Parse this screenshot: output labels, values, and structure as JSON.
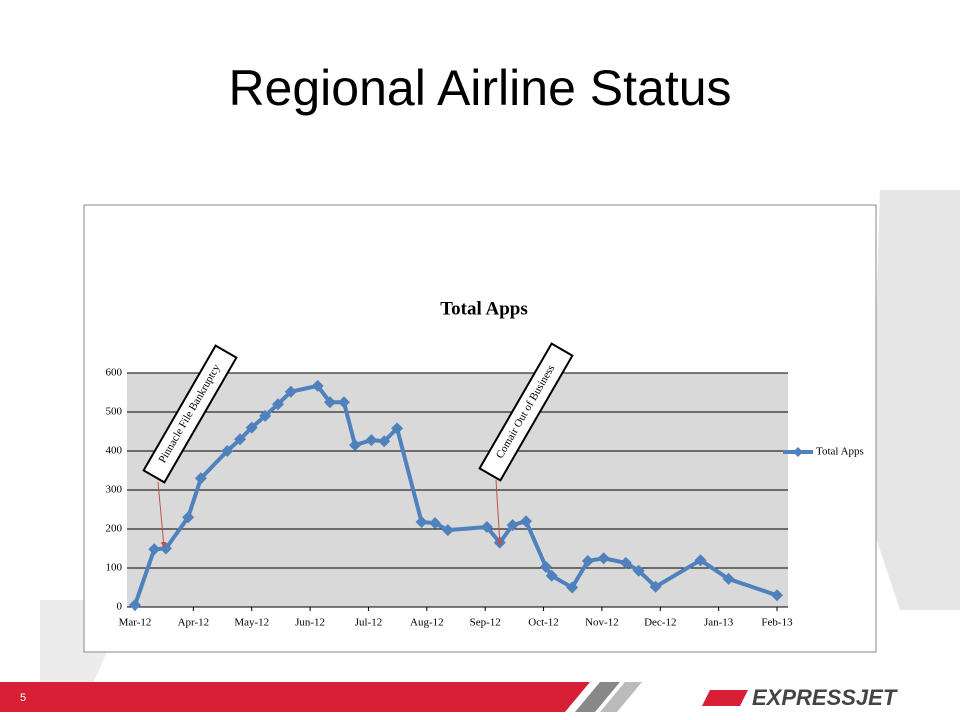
{
  "slide": {
    "title": "Regional Airline Status",
    "page_number": "5",
    "logo": "EXPRESSJET"
  },
  "chart_data": {
    "type": "line",
    "title": "Total Apps",
    "series": [
      {
        "name": "Total Apps",
        "color": "#4f81bd",
        "x": [
          0,
          0.33,
          0.53,
          0.91,
          1.13,
          1.58,
          1.8,
          2.0,
          2.23,
          2.45,
          2.67,
          3.13,
          3.34,
          3.58,
          3.77,
          4.05,
          4.27,
          4.49,
          4.91,
          5.14,
          5.36,
          6.03,
          6.25,
          6.47,
          6.7,
          7.04,
          7.14,
          7.49,
          7.76,
          8.03,
          8.41,
          8.63,
          8.92,
          9.69,
          10.17,
          11.0
        ],
        "values": [
          5,
          148,
          150,
          230,
          330,
          400,
          430,
          460,
          490,
          520,
          552,
          567,
          525,
          525,
          415,
          428,
          425,
          458,
          218,
          215,
          197,
          205,
          165,
          210,
          220,
          103,
          80,
          50,
          118,
          125,
          113,
          93,
          52,
          120,
          72,
          30
        ]
      }
    ],
    "xlim": [
      0,
      11
    ],
    "xticks": [
      {
        "value": 0,
        "label": "Mar-12"
      },
      {
        "value": 1,
        "label": "Apr-12"
      },
      {
        "value": 2,
        "label": "May-12"
      },
      {
        "value": 3,
        "label": "Jun-12"
      },
      {
        "value": 4,
        "label": "Jul-12"
      },
      {
        "value": 5,
        "label": "Aug-12"
      },
      {
        "value": 6,
        "label": "Sep-12"
      },
      {
        "value": 7,
        "label": "Oct-12"
      },
      {
        "value": 8,
        "label": "Nov-12"
      },
      {
        "value": 9,
        "label": "Dec-12"
      },
      {
        "value": 10,
        "label": "Jan-13"
      },
      {
        "value": 11,
        "label": "Feb-13"
      }
    ],
    "ylim": [
      0,
      600
    ],
    "yticks": [
      0,
      100,
      200,
      300,
      400,
      500,
      600
    ],
    "grid": true,
    "legend": "right",
    "annotations": [
      {
        "text": "Pinnacle File Bankruptcy"
      },
      {
        "text": "Comair Out of Business"
      }
    ]
  }
}
